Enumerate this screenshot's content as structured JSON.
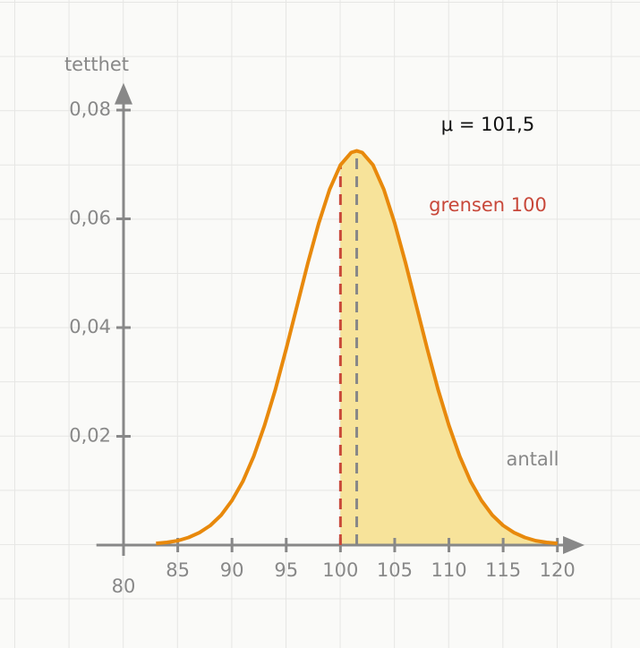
{
  "chart_data": {
    "type": "density",
    "x_label": "antall",
    "y_label": "tetthet",
    "x": [
      83,
      84,
      85,
      86,
      87,
      88,
      89,
      90,
      91,
      92,
      93,
      94,
      95,
      96,
      97,
      98,
      99,
      100,
      101,
      101.5,
      102,
      103,
      104,
      105,
      106,
      107,
      108,
      109,
      110,
      111,
      112,
      113,
      114,
      115,
      116,
      117,
      118,
      119,
      120
    ],
    "values": [
      0.0003,
      0.0005,
      0.0008,
      0.0014,
      0.0023,
      0.0036,
      0.0055,
      0.0082,
      0.0117,
      0.0163,
      0.022,
      0.0286,
      0.0361,
      0.044,
      0.0519,
      0.0592,
      0.0654,
      0.0699,
      0.0722,
      0.0725,
      0.0722,
      0.0699,
      0.0654,
      0.0592,
      0.0519,
      0.044,
      0.0361,
      0.0286,
      0.022,
      0.0163,
      0.0117,
      0.0082,
      0.0055,
      0.0036,
      0.0023,
      0.0014,
      0.0008,
      0.0005,
      0.0003
    ],
    "color": "#e8890c",
    "fill_color": "#f7e39a",
    "xlim": [
      77.5,
      122.5
    ],
    "xticks": [
      80,
      85,
      90,
      95,
      100,
      105,
      110,
      115,
      120
    ],
    "ylim": [
      0,
      0.085
    ],
    "yticks": [
      {
        "value": 0.02,
        "label": "0,02"
      },
      {
        "value": 0.04,
        "label": "0,04"
      },
      {
        "value": 0.06,
        "label": "0,06"
      },
      {
        "value": 0.08,
        "label": "0,08"
      }
    ],
    "annotations": [
      {
        "text": "μ = 101,5",
        "x": 101.5,
        "color": "#888888",
        "text_color": "#111111"
      },
      {
        "text": "grensen 100",
        "x": 100,
        "color": "#c8483a",
        "text_color": "#c8483a"
      }
    ]
  }
}
